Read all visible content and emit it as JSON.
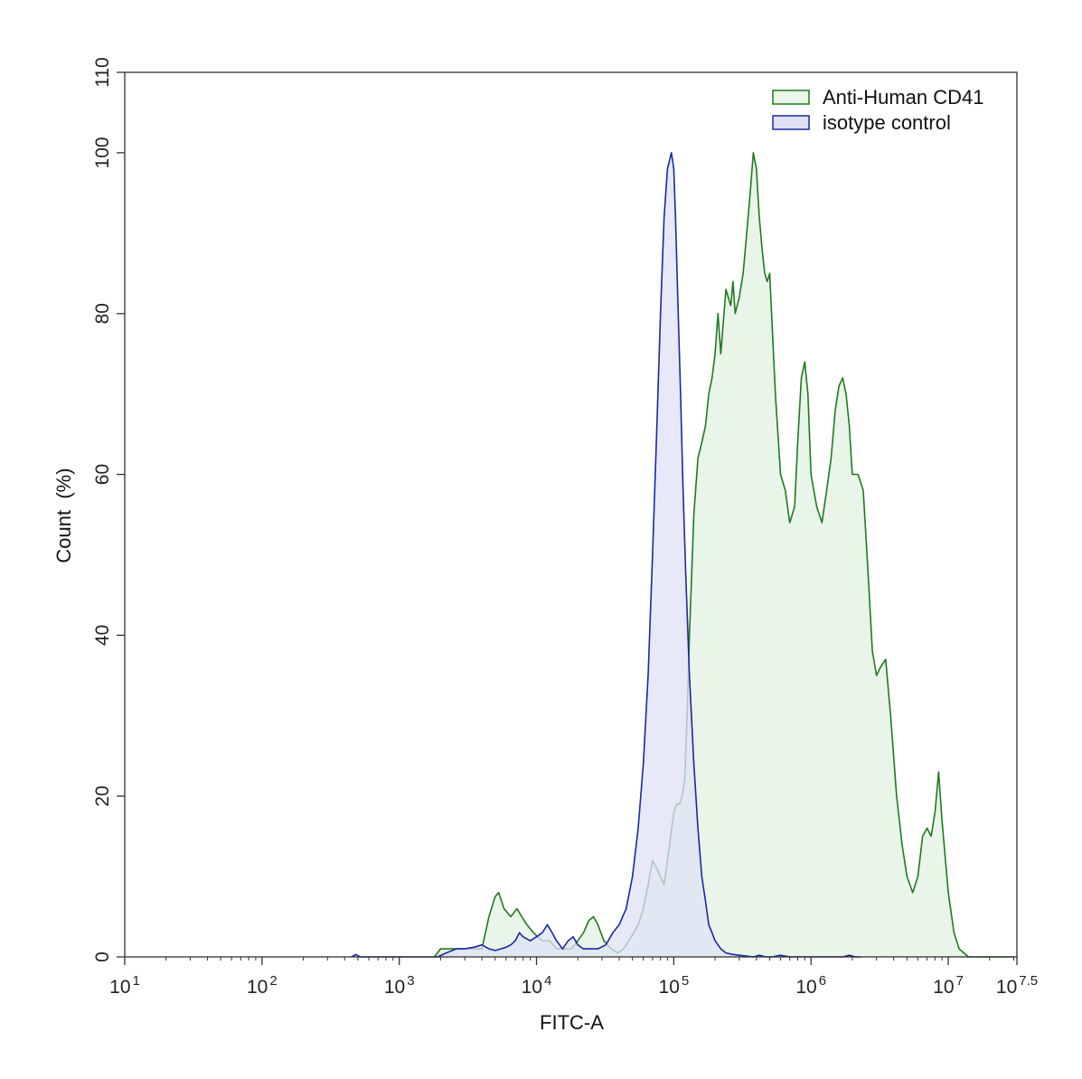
{
  "chart_data": {
    "type": "area",
    "title": "",
    "xlabel": "FITC-A",
    "ylabel": "Count  (%)",
    "x_scale": "log10",
    "xlim": [
      10,
      31622776.6
    ],
    "ylim": [
      0,
      110
    ],
    "x_ticks": [
      {
        "value": 10,
        "base": "10",
        "exp": "1"
      },
      {
        "value": 100,
        "base": "10",
        "exp": "2"
      },
      {
        "value": 1000,
        "base": "10",
        "exp": "3"
      },
      {
        "value": 10000,
        "base": "10",
        "exp": "4"
      },
      {
        "value": 100000,
        "base": "10",
        "exp": "5"
      },
      {
        "value": 1000000,
        "base": "10",
        "exp": "6"
      },
      {
        "value": 10000000,
        "base": "10",
        "exp": "7"
      },
      {
        "value": 31622776.6,
        "base": "10",
        "exp": "7.5"
      }
    ],
    "y_ticks": [
      0,
      20,
      40,
      60,
      80,
      100,
      110
    ],
    "grid": false,
    "legend_position": "top-right",
    "series": [
      {
        "name": "Anti-Human CD41",
        "stroke": "#1f7a1f",
        "fill": "#e8f5e8",
        "x": [
          1800,
          2000,
          2500,
          3000,
          3500,
          4000,
          4500,
          5000,
          5300,
          5800,
          6500,
          7200,
          7800,
          8500,
          9500,
          11000,
          12500,
          14000,
          16000,
          18000,
          20000,
          22000,
          24000,
          26000,
          28000,
          31000,
          35000,
          39000,
          43000,
          47000,
          51000,
          55000,
          60000,
          65000,
          70000,
          75000,
          80000,
          85000,
          90000,
          95000,
          100000,
          105000,
          110000,
          115000,
          120000,
          125000,
          130000,
          140000,
          150000,
          160000,
          170000,
          180000,
          190000,
          200000,
          210000,
          220000,
          240000,
          260000,
          270000,
          280000,
          300000,
          320000,
          340000,
          360000,
          380000,
          400000,
          420000,
          440000,
          460000,
          480000,
          500000,
          550000,
          600000,
          650000,
          700000,
          760000,
          800000,
          850000,
          900000,
          950000,
          1000000,
          1100000,
          1200000,
          1300000,
          1400000,
          1500000,
          1600000,
          1700000,
          1800000,
          1900000,
          2000000,
          2200000,
          2400000,
          2600000,
          2800000,
          3000000,
          3200000,
          3500000,
          3800000,
          4200000,
          4600000,
          5000000,
          5500000,
          6000000,
          6500000,
          7000000,
          7500000,
          8000000,
          8500000,
          9000000,
          10000000,
          11000000,
          12000000,
          13000000,
          14000000,
          15000000,
          16500000,
          18000000,
          20000000,
          22000000,
          24000000,
          26000000,
          28000000,
          30000000
        ],
        "y": [
          0,
          1,
          1,
          1,
          1,
          1,
          5,
          7.5,
          8,
          6,
          5,
          6,
          5,
          4,
          3,
          2,
          2,
          1,
          1,
          1,
          2,
          3,
          4.5,
          5,
          4,
          2,
          1,
          0.5,
          1,
          2,
          3,
          4,
          6,
          9,
          12,
          11,
          10,
          9,
          12,
          15,
          18,
          19,
          19,
          20,
          22,
          30,
          40,
          55,
          62,
          64,
          66,
          70,
          72,
          75,
          80,
          75,
          83,
          81,
          84,
          80,
          82,
          85,
          90,
          95,
          100,
          98,
          92,
          88,
          85,
          84,
          85,
          70,
          60,
          58,
          54,
          56,
          64,
          72,
          74,
          70,
          60,
          56,
          54,
          58,
          62,
          68,
          71,
          72,
          70,
          66,
          60,
          60,
          58,
          48,
          38,
          35,
          36,
          37,
          30,
          20,
          14,
          10,
          8,
          10,
          15,
          16,
          15,
          18,
          23,
          17,
          8,
          3,
          1,
          0.5,
          0,
          0,
          0,
          0,
          0,
          0,
          0,
          0,
          0,
          0
        ]
      },
      {
        "name": "isotype control",
        "stroke": "#1a2a9e",
        "fill": "#dfe2f7",
        "x": [
          450,
          480,
          520,
          1900,
          2200,
          2600,
          3000,
          3500,
          4000,
          4500,
          5000,
          5500,
          6000,
          6500,
          7000,
          7500,
          8000,
          9000,
          10000,
          11000,
          12000,
          13000,
          14000,
          15500,
          17000,
          18500,
          20000,
          22000,
          25000,
          28000,
          32000,
          36000,
          40000,
          45000,
          50000,
          55000,
          60000,
          65000,
          70000,
          75000,
          80000,
          85000,
          90000,
          93000,
          96000,
          98000,
          100000,
          103000,
          107000,
          112000,
          117000,
          122000,
          130000,
          140000,
          150000,
          160000,
          170000,
          180000,
          190000,
          200000,
          220000,
          240000,
          270000,
          300000,
          340000,
          380000,
          420000,
          470000,
          520000,
          600000,
          700000,
          800000,
          900000,
          1000000,
          1100000,
          1300000,
          1500000,
          1700000,
          1900000,
          2100000,
          2300000
        ],
        "y": [
          0,
          0.3,
          0,
          0,
          0.5,
          1,
          1,
          1.2,
          1.5,
          1,
          0.8,
          1,
          1.2,
          1.5,
          2,
          3,
          2.5,
          2,
          2.5,
          3,
          4,
          3,
          2,
          1,
          2,
          2.5,
          1.5,
          1,
          1,
          1,
          1.5,
          3,
          4,
          6,
          10,
          16,
          24,
          35,
          50,
          65,
          80,
          92,
          98,
          99,
          100,
          99,
          98,
          92,
          82,
          70,
          58,
          48,
          35,
          24,
          16,
          10,
          7,
          4,
          3,
          2,
          1,
          0.5,
          0.3,
          0.2,
          0.1,
          0,
          0.2,
          0,
          0,
          0.2,
          0,
          0,
          0,
          0,
          0,
          0,
          0,
          0,
          0.2,
          0,
          0
        ]
      }
    ]
  }
}
